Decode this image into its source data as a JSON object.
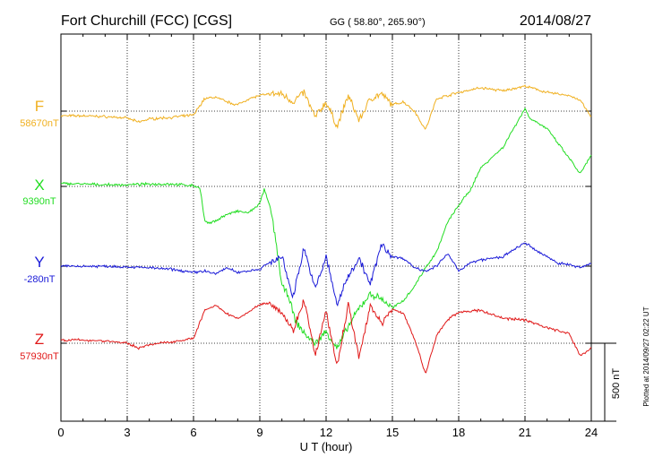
{
  "header": {
    "station": "Fort Churchill (FCC)  [CGS]",
    "coords": "GG ( 58.80°, 265.90°)",
    "date": "2014/08/27"
  },
  "footer": {
    "plotted": "Plotted at 2014/09/27 02:22  UT",
    "scale_label": "500 nT"
  },
  "colors": {
    "F": "#f0b020",
    "X": "#22dd22",
    "Y": "#1a1ad8",
    "Z": "#e01818"
  },
  "chart_data": {
    "type": "line",
    "title": "Fort Churchill (FCC)  [CGS]",
    "xlabel": "U T (hour)",
    "xlim": [
      0,
      24
    ],
    "xticks": [
      0,
      3,
      6,
      9,
      12,
      15,
      18,
      21,
      24
    ],
    "x_tick_labels": [
      "0",
      "3",
      "6",
      "9",
      "12",
      "15",
      "18",
      "21",
      "24"
    ],
    "scale_bar_nT": 500,
    "series": [
      {
        "name": "F",
        "baseline_label": "58670nT",
        "color": "#f0b020",
        "baseline_nT": 58670,
        "x": [
          0,
          1,
          2,
          3,
          3.5,
          4,
          5,
          6,
          6.5,
          7,
          7.5,
          8,
          8.5,
          9,
          9.5,
          10,
          10.5,
          11,
          11.5,
          12,
          12.5,
          13,
          13.5,
          14,
          14.5,
          15,
          15.5,
          16,
          16.5,
          17,
          17.5,
          18,
          19,
          20,
          21,
          22,
          23,
          23.5,
          24
        ],
        "values": [
          -30,
          -30,
          -35,
          -45,
          -70,
          -50,
          -40,
          -25,
          80,
          90,
          60,
          40,
          80,
          100,
          110,
          110,
          60,
          120,
          -40,
          60,
          -100,
          100,
          -60,
          80,
          110,
          40,
          60,
          0,
          -120,
          80,
          100,
          120,
          150,
          130,
          160,
          120,
          100,
          70,
          -40
        ]
      },
      {
        "name": "X",
        "baseline_label": "9390nT",
        "color": "#22dd22",
        "baseline_nT": 9390,
        "x": [
          0,
          1,
          2,
          3,
          4,
          5,
          6,
          6.3,
          6.5,
          6.7,
          7,
          7.5,
          8,
          8.5,
          9,
          9.2,
          9.5,
          9.8,
          10,
          10.3,
          10.6,
          11,
          11.5,
          12,
          12.5,
          13,
          13.5,
          14,
          14.5,
          15,
          15.5,
          16,
          16.5,
          17,
          17.5,
          18,
          18.5,
          19,
          20,
          21,
          21.2,
          22,
          23,
          23.5,
          24
        ],
        "values": [
          20,
          15,
          10,
          10,
          15,
          15,
          5,
          -10,
          -220,
          -240,
          -220,
          -180,
          -160,
          -170,
          -110,
          -20,
          -150,
          -420,
          -640,
          -700,
          -860,
          -940,
          -1010,
          -930,
          -1040,
          -900,
          -780,
          -690,
          -720,
          -780,
          -730,
          -640,
          -520,
          -420,
          -230,
          -120,
          -30,
          120,
          250,
          500,
          440,
          370,
          180,
          80,
          200
        ]
      },
      {
        "name": "Y",
        "baseline_label": "-280nT",
        "color": "#1a1ad8",
        "baseline_nT": -280,
        "x": [
          0,
          1,
          2,
          3,
          4,
          5,
          6,
          6.5,
          7,
          7.5,
          8,
          9,
          9.5,
          10,
          10.5,
          11,
          11.5,
          12,
          12.5,
          13,
          13.5,
          14,
          14.5,
          15,
          15.5,
          16,
          16.5,
          17,
          17.5,
          18,
          18.5,
          19,
          20,
          21,
          21.5,
          22,
          22.5,
          23,
          23.5,
          24
        ],
        "values": [
          0,
          0,
          0,
          -5,
          -10,
          -20,
          -40,
          -30,
          -50,
          -10,
          -40,
          -20,
          30,
          60,
          -200,
          120,
          -150,
          60,
          -250,
          -60,
          50,
          -120,
          140,
          60,
          50,
          -10,
          -30,
          0,
          80,
          -30,
          20,
          40,
          60,
          150,
          100,
          60,
          20,
          10,
          -10,
          20
        ]
      },
      {
        "name": "Z",
        "baseline_label": "57930nT",
        "color": "#e01818",
        "baseline_nT": 57930,
        "x": [
          0,
          1,
          2,
          3,
          3.5,
          4,
          5,
          6,
          6.5,
          7,
          7.5,
          8,
          8.5,
          9,
          9.5,
          10,
          10.5,
          11,
          11.5,
          12,
          12.5,
          13,
          13.5,
          14,
          14.5,
          15,
          15.5,
          16,
          16.5,
          17,
          17.5,
          18,
          19,
          20,
          21,
          22,
          23,
          23.5,
          24
        ],
        "values": [
          20,
          20,
          15,
          0,
          -30,
          -10,
          10,
          30,
          210,
          240,
          190,
          160,
          200,
          250,
          260,
          200,
          80,
          280,
          -80,
          200,
          -150,
          250,
          -100,
          250,
          120,
          220,
          190,
          30,
          -200,
          50,
          150,
          200,
          210,
          160,
          150,
          100,
          60,
          -80,
          -30
        ]
      }
    ]
  }
}
